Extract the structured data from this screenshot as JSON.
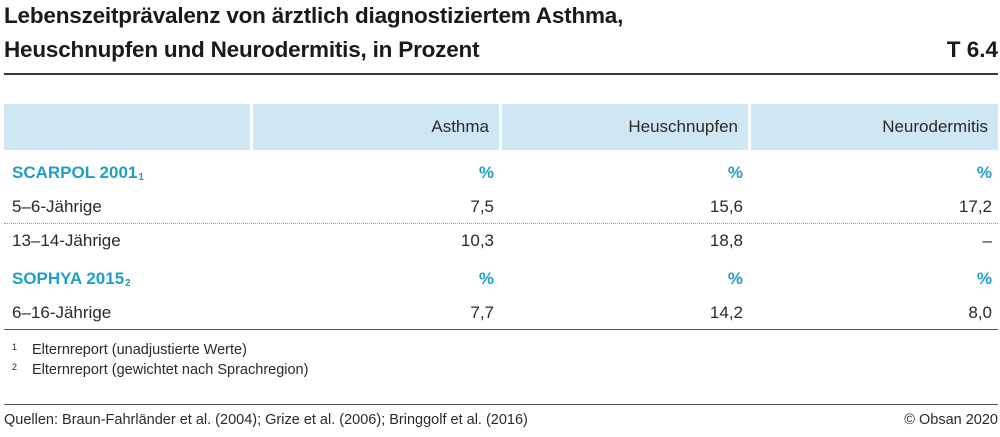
{
  "title": {
    "line1": "Lebenszeitprävalenz von ärztlich diagnostiziertem Asthma,",
    "line2": "Heuschnupfen und Neurodermitis, in Prozent",
    "table_id": "T 6.4"
  },
  "table": {
    "columns": [
      "",
      "Asthma",
      "Heuschnupfen",
      "Neurodermitis"
    ],
    "groups": [
      {
        "label": "SCARPOL 2001",
        "footnote": "1",
        "unit_row": [
          "%",
          "%",
          "%"
        ],
        "rows": [
          {
            "label": "5–6-Jährige",
            "values": [
              "7,5",
              "15,6",
              "17,2"
            ]
          },
          {
            "label": "13–14-Jährige",
            "values": [
              "10,3",
              "18,8",
              "–"
            ]
          }
        ]
      },
      {
        "label": "SOPHYA 2015",
        "footnote": "2",
        "unit_row": [
          "%",
          "%",
          "%"
        ],
        "rows": [
          {
            "label": "6–16-Jährige",
            "values": [
              "7,7",
              "14,2",
              "8,0"
            ]
          }
        ]
      }
    ]
  },
  "footnotes": [
    {
      "mark": "1",
      "text": "Elternreport (unadjustierte Werte)"
    },
    {
      "mark": "2",
      "text": "Elternreport (gewichtet nach Sprachregion)"
    }
  ],
  "sources": "Quellen: Braun-Fahrländer et al. (2004); Grize et al. (2006); Bringgolf et al. (2016)",
  "copyright": "© Obsan 2020",
  "colors": {
    "accent": "#1f9fc8",
    "header_bg": "#cfe6f3"
  }
}
